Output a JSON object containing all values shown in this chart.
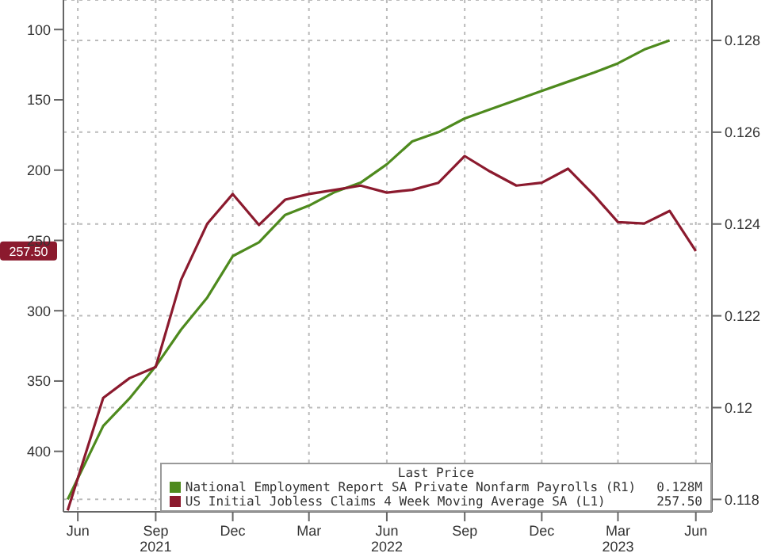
{
  "chart_data": {
    "type": "line",
    "legend_title": "Last Price",
    "annotations": [
      "0.128M",
      "257.50"
    ],
    "xlim": [
      "2021-05-15",
      "2023-06-20"
    ],
    "xticks": [
      {
        "value": "2021-06-01",
        "label": "Jun"
      },
      {
        "value": "2021-09-01",
        "label": "Sep\n2021"
      },
      {
        "value": "2021-12-01",
        "label": "Dec"
      },
      {
        "value": "2022-03-01",
        "label": "Mar"
      },
      {
        "value": "2022-06-01",
        "label": "Jun\n2022"
      },
      {
        "value": "2022-09-01",
        "label": "Sep"
      },
      {
        "value": "2022-12-01",
        "label": "Dec"
      },
      {
        "value": "2023-03-01",
        "label": "Mar\n2023"
      },
      {
        "value": "2023-06-01",
        "label": "Jun"
      }
    ],
    "ylim": [
      443,
      79
    ],
    "yticks": [
      100,
      150,
      200,
      250,
      300,
      350,
      400
    ],
    "y2lim": [
      0.11773,
      0.12888
    ],
    "y2ticks": [
      0.118,
      0.12,
      0.122,
      0.124,
      0.126,
      0.128
    ],
    "grid": true,
    "legend": "bottom right",
    "line_style": "solid",
    "marker": "none",
    "x": [
      "2021-05-20",
      "2021-07-01",
      "2021-08-01",
      "2021-09-01",
      "2021-10-01",
      "2021-11-01",
      "2021-12-01",
      "2022-01-01",
      "2022-02-01",
      "2022-03-01",
      "2022-04-01",
      "2022-05-01",
      "2022-06-01",
      "2022-07-01",
      "2022-08-01",
      "2022-09-01",
      "2022-10-01",
      "2022-11-01",
      "2022-12-01",
      "2023-01-01",
      "2023-02-01",
      "2023-03-01",
      "2023-04-01",
      "2023-05-01",
      "2023-06-01"
    ],
    "series": [
      {
        "name": "National Employment Report SA Private Nonfarm Payrolls  (R1)",
        "color": "#4e8a1e",
        "axis": "y2",
        "values": [
          0.118,
          0.1196,
          0.1202,
          0.1209,
          0.1217,
          0.1224,
          0.1233,
          0.1236,
          0.1242,
          0.1244,
          0.1247,
          0.1249,
          0.1253,
          0.1258,
          0.126,
          0.1263,
          0.1265,
          0.1267,
          0.1269,
          0.1271,
          0.1273,
          0.1275,
          0.1278,
          0.128,
          null
        ]
      },
      {
        "name": "US Initial Jobless Claims 4 Week Moving Average SA  (L1)",
        "color": "#8b1a2e",
        "values": [
          442,
          362,
          348,
          340,
          278,
          238,
          217,
          239,
          221,
          217,
          214,
          211,
          216,
          214,
          209,
          190,
          201,
          211,
          209,
          199,
          218,
          237,
          238,
          229,
          257.5
        ]
      }
    ]
  }
}
